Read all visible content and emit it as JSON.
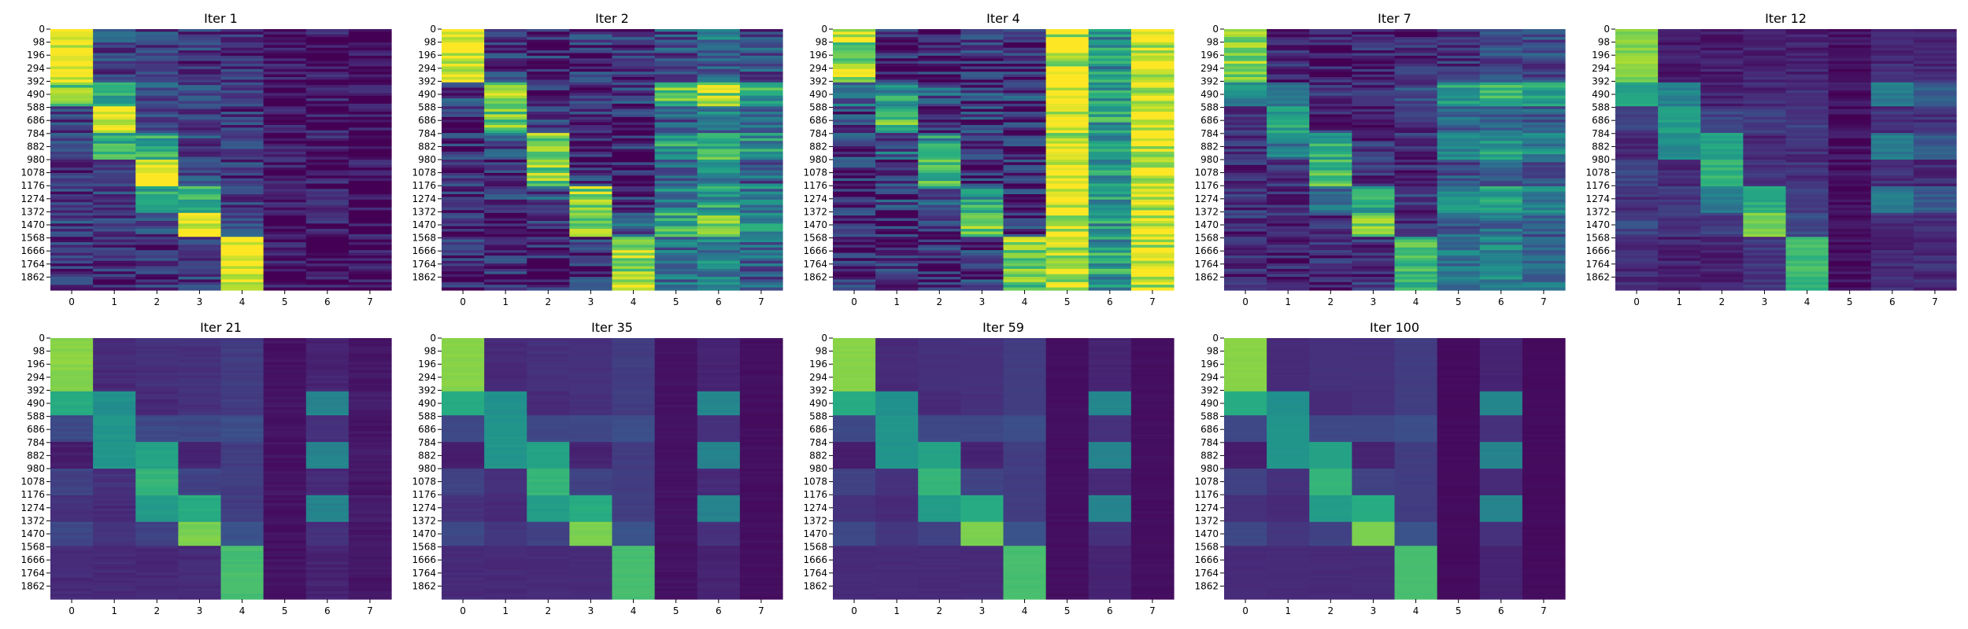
{
  "chart_data": {
    "type": "heatmap",
    "colormap": "viridis",
    "vmin": 0,
    "vmax": 1,
    "colorbar": false,
    "n_rows": 1960,
    "x_categories": [
      "0",
      "1",
      "2",
      "3",
      "4",
      "5",
      "6",
      "7"
    ],
    "y_tick_labels": [
      "0",
      "98",
      "196",
      "294",
      "392",
      "490",
      "588",
      "686",
      "784",
      "882",
      "980",
      "1078",
      "1176",
      "1274",
      "1372",
      "1470",
      "1568",
      "1666",
      "1764",
      "1862"
    ],
    "row_group_edges": [
      0,
      392,
      588,
      784,
      980,
      1176,
      1372,
      1568,
      1960
    ],
    "panels": [
      {
        "title": "Iter 1",
        "group_values": [
          [
            1.0,
            0.22,
            0.2,
            0.16,
            0.12,
            0.02,
            0.03,
            0.02
          ],
          [
            0.76,
            0.62,
            0.25,
            0.18,
            0.2,
            0.03,
            0.05,
            0.03
          ],
          [
            0.2,
            1.0,
            0.24,
            0.18,
            0.15,
            0.02,
            0.04,
            0.02
          ],
          [
            0.18,
            0.66,
            0.62,
            0.2,
            0.16,
            0.02,
            0.04,
            0.02
          ],
          [
            0.16,
            0.22,
            1.0,
            0.22,
            0.16,
            0.02,
            0.04,
            0.02
          ],
          [
            0.18,
            0.2,
            0.62,
            0.6,
            0.18,
            0.02,
            0.04,
            0.02
          ],
          [
            0.2,
            0.18,
            0.2,
            1.0,
            0.2,
            0.02,
            0.04,
            0.02
          ],
          [
            0.16,
            0.14,
            0.14,
            0.18,
            1.0,
            0.02,
            0.03,
            0.02
          ]
        ],
        "row_noise": 0.16
      },
      {
        "title": "Iter 2",
        "group_values": [
          [
            1.0,
            0.16,
            0.12,
            0.14,
            0.12,
            0.22,
            0.35,
            0.22
          ],
          [
            0.22,
            0.8,
            0.14,
            0.12,
            0.14,
            0.7,
            0.85,
            0.6
          ],
          [
            0.12,
            0.8,
            0.14,
            0.1,
            0.1,
            0.3,
            0.4,
            0.3
          ],
          [
            0.12,
            0.24,
            0.8,
            0.12,
            0.1,
            0.55,
            0.7,
            0.5
          ],
          [
            0.12,
            0.1,
            0.8,
            0.14,
            0.1,
            0.3,
            0.4,
            0.3
          ],
          [
            0.12,
            0.14,
            0.24,
            0.8,
            0.16,
            0.45,
            0.55,
            0.4
          ],
          [
            0.12,
            0.1,
            0.1,
            0.8,
            0.3,
            0.6,
            0.75,
            0.55
          ],
          [
            0.1,
            0.1,
            0.08,
            0.14,
            0.82,
            0.35,
            0.45,
            0.3
          ]
        ],
        "row_noise": 0.2
      },
      {
        "title": "Iter 4",
        "group_values": [
          [
            0.85,
            0.1,
            0.1,
            0.1,
            0.08,
            0.95,
            0.5,
            0.95
          ],
          [
            0.3,
            0.5,
            0.3,
            0.18,
            0.2,
            0.95,
            0.55,
            0.95
          ],
          [
            0.2,
            0.65,
            0.18,
            0.14,
            0.12,
            0.95,
            0.55,
            0.95
          ],
          [
            0.15,
            0.3,
            0.55,
            0.15,
            0.12,
            0.95,
            0.55,
            0.95
          ],
          [
            0.12,
            0.15,
            0.7,
            0.15,
            0.12,
            0.95,
            0.55,
            0.95
          ],
          [
            0.12,
            0.18,
            0.3,
            0.55,
            0.14,
            0.95,
            0.55,
            0.95
          ],
          [
            0.12,
            0.12,
            0.14,
            0.82,
            0.16,
            0.95,
            0.55,
            0.95
          ],
          [
            0.1,
            0.1,
            0.1,
            0.14,
            0.75,
            0.95,
            0.55,
            0.95
          ]
        ],
        "row_noise": 0.22
      },
      {
        "title": "Iter 7",
        "group_values": [
          [
            0.82,
            0.1,
            0.08,
            0.1,
            0.1,
            0.14,
            0.2,
            0.22
          ],
          [
            0.45,
            0.42,
            0.16,
            0.14,
            0.2,
            0.55,
            0.65,
            0.55
          ],
          [
            0.16,
            0.58,
            0.14,
            0.12,
            0.14,
            0.3,
            0.35,
            0.3
          ],
          [
            0.14,
            0.4,
            0.62,
            0.14,
            0.14,
            0.45,
            0.55,
            0.45
          ],
          [
            0.14,
            0.14,
            0.7,
            0.14,
            0.14,
            0.25,
            0.3,
            0.25
          ],
          [
            0.14,
            0.14,
            0.35,
            0.58,
            0.16,
            0.45,
            0.55,
            0.45
          ],
          [
            0.12,
            0.12,
            0.14,
            0.78,
            0.18,
            0.3,
            0.35,
            0.28
          ],
          [
            0.1,
            0.1,
            0.1,
            0.14,
            0.7,
            0.4,
            0.45,
            0.35
          ]
        ],
        "row_noise": 0.14
      },
      {
        "title": "Iter 12",
        "group_values": [
          [
            0.82,
            0.08,
            0.08,
            0.1,
            0.1,
            0.04,
            0.12,
            0.12
          ],
          [
            0.6,
            0.45,
            0.1,
            0.12,
            0.15,
            0.04,
            0.42,
            0.3
          ],
          [
            0.2,
            0.55,
            0.2,
            0.2,
            0.18,
            0.04,
            0.14,
            0.14
          ],
          [
            0.12,
            0.48,
            0.58,
            0.12,
            0.14,
            0.04,
            0.42,
            0.28
          ],
          [
            0.2,
            0.12,
            0.66,
            0.16,
            0.14,
            0.04,
            0.12,
            0.12
          ],
          [
            0.14,
            0.16,
            0.42,
            0.62,
            0.18,
            0.04,
            0.4,
            0.28
          ],
          [
            0.22,
            0.16,
            0.18,
            0.8,
            0.22,
            0.04,
            0.14,
            0.14
          ],
          [
            0.12,
            0.1,
            0.1,
            0.16,
            0.68,
            0.04,
            0.12,
            0.12
          ]
        ],
        "row_noise": 0.06
      },
      {
        "title": "Iter 21",
        "group_values": [
          [
            0.82,
            0.12,
            0.14,
            0.14,
            0.18,
            0.05,
            0.1,
            0.06
          ],
          [
            0.62,
            0.5,
            0.12,
            0.14,
            0.18,
            0.05,
            0.46,
            0.08
          ],
          [
            0.22,
            0.52,
            0.22,
            0.22,
            0.24,
            0.05,
            0.14,
            0.06
          ],
          [
            0.08,
            0.52,
            0.58,
            0.1,
            0.18,
            0.05,
            0.45,
            0.08
          ],
          [
            0.2,
            0.14,
            0.66,
            0.2,
            0.18,
            0.05,
            0.12,
            0.06
          ],
          [
            0.14,
            0.12,
            0.55,
            0.62,
            0.18,
            0.05,
            0.45,
            0.08
          ],
          [
            0.22,
            0.16,
            0.2,
            0.8,
            0.26,
            0.05,
            0.14,
            0.06
          ],
          [
            0.12,
            0.12,
            0.12,
            0.12,
            0.7,
            0.05,
            0.1,
            0.06
          ]
        ],
        "row_noise": 0.02
      },
      {
        "title": "Iter 35",
        "group_values": [
          [
            0.82,
            0.12,
            0.14,
            0.14,
            0.18,
            0.05,
            0.1,
            0.04
          ],
          [
            0.62,
            0.5,
            0.12,
            0.14,
            0.18,
            0.05,
            0.46,
            0.04
          ],
          [
            0.22,
            0.52,
            0.22,
            0.22,
            0.24,
            0.05,
            0.14,
            0.04
          ],
          [
            0.08,
            0.52,
            0.58,
            0.1,
            0.18,
            0.05,
            0.45,
            0.04
          ],
          [
            0.2,
            0.14,
            0.66,
            0.2,
            0.18,
            0.05,
            0.12,
            0.04
          ],
          [
            0.14,
            0.12,
            0.55,
            0.62,
            0.18,
            0.05,
            0.45,
            0.04
          ],
          [
            0.22,
            0.16,
            0.2,
            0.8,
            0.26,
            0.05,
            0.14,
            0.04
          ],
          [
            0.12,
            0.12,
            0.12,
            0.12,
            0.7,
            0.05,
            0.1,
            0.04
          ]
        ],
        "row_noise": 0.012
      },
      {
        "title": "Iter 59",
        "group_values": [
          [
            0.82,
            0.12,
            0.14,
            0.14,
            0.18,
            0.04,
            0.1,
            0.04
          ],
          [
            0.62,
            0.5,
            0.12,
            0.14,
            0.18,
            0.04,
            0.46,
            0.04
          ],
          [
            0.22,
            0.52,
            0.22,
            0.22,
            0.24,
            0.04,
            0.14,
            0.04
          ],
          [
            0.08,
            0.52,
            0.58,
            0.1,
            0.18,
            0.04,
            0.45,
            0.04
          ],
          [
            0.2,
            0.14,
            0.66,
            0.2,
            0.18,
            0.04,
            0.12,
            0.04
          ],
          [
            0.14,
            0.12,
            0.55,
            0.62,
            0.18,
            0.04,
            0.45,
            0.04
          ],
          [
            0.22,
            0.16,
            0.2,
            0.8,
            0.26,
            0.04,
            0.14,
            0.04
          ],
          [
            0.12,
            0.12,
            0.12,
            0.12,
            0.7,
            0.04,
            0.1,
            0.04
          ]
        ],
        "row_noise": 0.008
      },
      {
        "title": "Iter 100",
        "group_values": [
          [
            0.82,
            0.12,
            0.14,
            0.14,
            0.18,
            0.03,
            0.1,
            0.03
          ],
          [
            0.62,
            0.5,
            0.12,
            0.14,
            0.18,
            0.03,
            0.46,
            0.03
          ],
          [
            0.22,
            0.52,
            0.22,
            0.22,
            0.24,
            0.03,
            0.14,
            0.03
          ],
          [
            0.08,
            0.52,
            0.58,
            0.1,
            0.18,
            0.03,
            0.45,
            0.03
          ],
          [
            0.2,
            0.14,
            0.66,
            0.2,
            0.18,
            0.03,
            0.12,
            0.03
          ],
          [
            0.14,
            0.12,
            0.55,
            0.62,
            0.18,
            0.03,
            0.45,
            0.03
          ],
          [
            0.22,
            0.16,
            0.2,
            0.8,
            0.26,
            0.03,
            0.14,
            0.03
          ],
          [
            0.12,
            0.12,
            0.12,
            0.12,
            0.7,
            0.03,
            0.1,
            0.03
          ]
        ],
        "row_noise": 0.006
      }
    ]
  }
}
